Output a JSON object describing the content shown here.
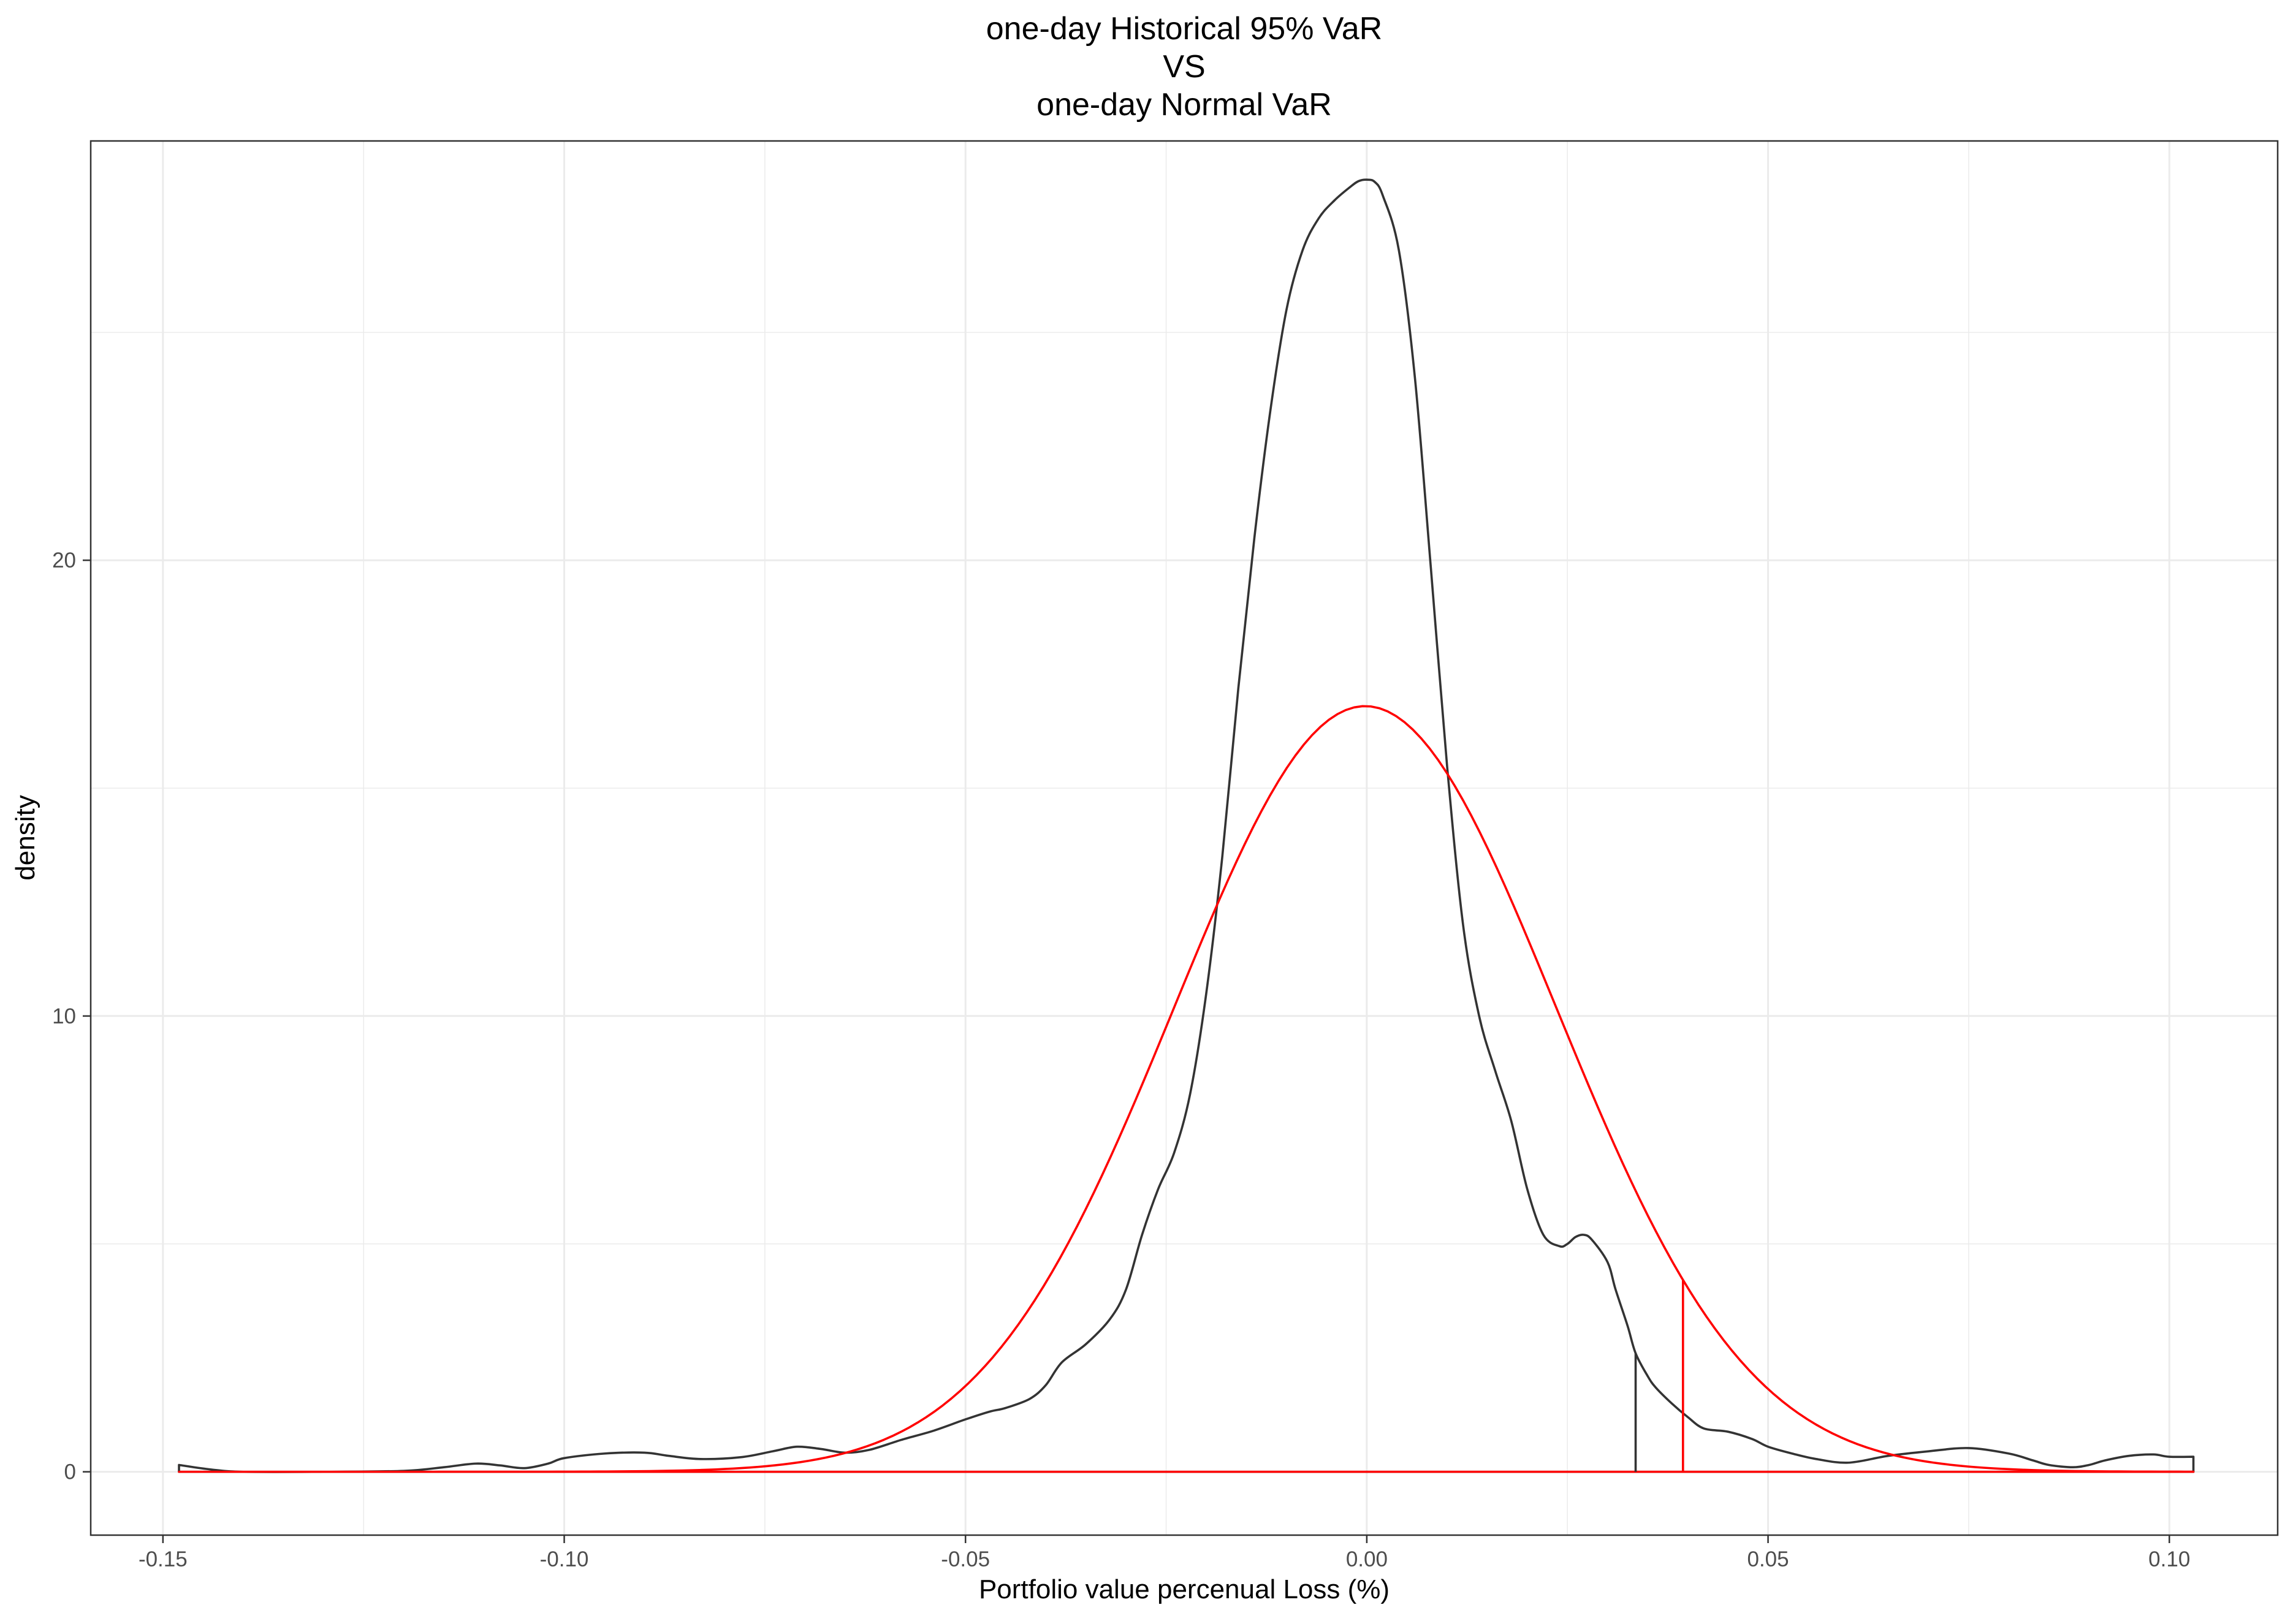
{
  "chart_data": {
    "type": "line",
    "title_lines": [
      "one-day Historical 95% VaR",
      "VS",
      "one-day Normal VaR"
    ],
    "xlabel": "Portfolio value percenual Loss (%)",
    "ylabel": "density",
    "xlim": [
      -0.159,
      0.1135
    ],
    "ylim": [
      -1.39,
      29.2
    ],
    "x_ticks": [
      -0.15,
      -0.1,
      -0.05,
      0.0,
      0.05,
      0.1
    ],
    "x_tick_labels": [
      "-0.15",
      "-0.10",
      "-0.05",
      "0.00",
      "0.05",
      "0.10"
    ],
    "x_minor_ticks": [
      -0.125,
      -0.075,
      -0.025,
      0.025,
      0.075
    ],
    "y_ticks": [
      0,
      10,
      20
    ],
    "y_tick_labels": [
      "0",
      "10",
      "20"
    ],
    "y_minor_ticks": [
      5,
      15,
      25
    ],
    "grid": true,
    "legend": "none",
    "series": [
      {
        "color": "#333333",
        "fill_to_baseline": true,
        "x": [
          -0.148,
          -0.144,
          -0.14,
          -0.13,
          -0.12,
          -0.115,
          -0.111,
          -0.108,
          -0.105,
          -0.102,
          -0.1,
          -0.095,
          -0.09,
          -0.087,
          -0.083,
          -0.078,
          -0.074,
          -0.071,
          -0.068,
          -0.065,
          -0.062,
          -0.058,
          -0.054,
          -0.05,
          -0.047,
          -0.045,
          -0.042,
          -0.04,
          -0.038,
          -0.035,
          -0.032,
          -0.03,
          -0.028,
          -0.026,
          -0.024,
          -0.022,
          -0.02,
          -0.018,
          -0.016,
          -0.014,
          -0.012,
          -0.01,
          -0.008,
          -0.006,
          -0.004,
          -0.002,
          -0.001,
          0.0,
          0.001,
          0.002,
          0.004,
          0.006,
          0.008,
          0.01,
          0.012,
          0.014,
          0.016,
          0.018,
          0.02,
          0.022,
          0.024,
          0.025,
          0.026,
          0.027,
          0.028,
          0.03,
          0.031,
          0.0325,
          0.0335,
          0.035,
          0.036,
          0.038,
          0.04,
          0.042,
          0.045,
          0.048,
          0.05,
          0.053,
          0.056,
          0.06,
          0.065,
          0.07,
          0.075,
          0.08,
          0.083,
          0.085,
          0.088,
          0.09,
          0.092,
          0.095,
          0.098,
          0.1,
          0.103
        ],
        "y": [
          0.15,
          0.05,
          0.0,
          0.0,
          0.02,
          0.1,
          0.18,
          0.14,
          0.08,
          0.18,
          0.3,
          0.4,
          0.42,
          0.35,
          0.28,
          0.32,
          0.45,
          0.55,
          0.5,
          0.42,
          0.48,
          0.7,
          0.9,
          1.15,
          1.32,
          1.4,
          1.6,
          1.9,
          2.4,
          2.8,
          3.35,
          4.0,
          5.2,
          6.2,
          7.0,
          8.3,
          10.5,
          13.5,
          17.2,
          20.5,
          23.3,
          25.5,
          26.8,
          27.5,
          27.9,
          28.2,
          28.32,
          28.35,
          28.3,
          28.0,
          26.8,
          24.0,
          19.8,
          15.5,
          12.0,
          10.0,
          8.8,
          7.7,
          6.2,
          5.2,
          4.95,
          5.0,
          5.15,
          5.2,
          5.1,
          4.6,
          4.0,
          3.2,
          2.6,
          2.1,
          1.85,
          1.5,
          1.2,
          0.95,
          0.88,
          0.72,
          0.55,
          0.4,
          0.28,
          0.2,
          0.35,
          0.45,
          0.52,
          0.4,
          0.25,
          0.15,
          0.1,
          0.15,
          0.25,
          0.35,
          0.38,
          0.33,
          0.33
        ]
      },
      {
        "color": "#ff0000",
        "fill_to_baseline": true,
        "mean": -0.0002,
        "sd": 0.0238,
        "x_range": [
          -0.148,
          0.103
        ],
        "peak_density": 16.8
      }
    ],
    "var_lines": [
      {
        "x": 0.0335,
        "color": "#333333"
      },
      {
        "x": 0.0394,
        "color": "#ff0000"
      }
    ]
  }
}
